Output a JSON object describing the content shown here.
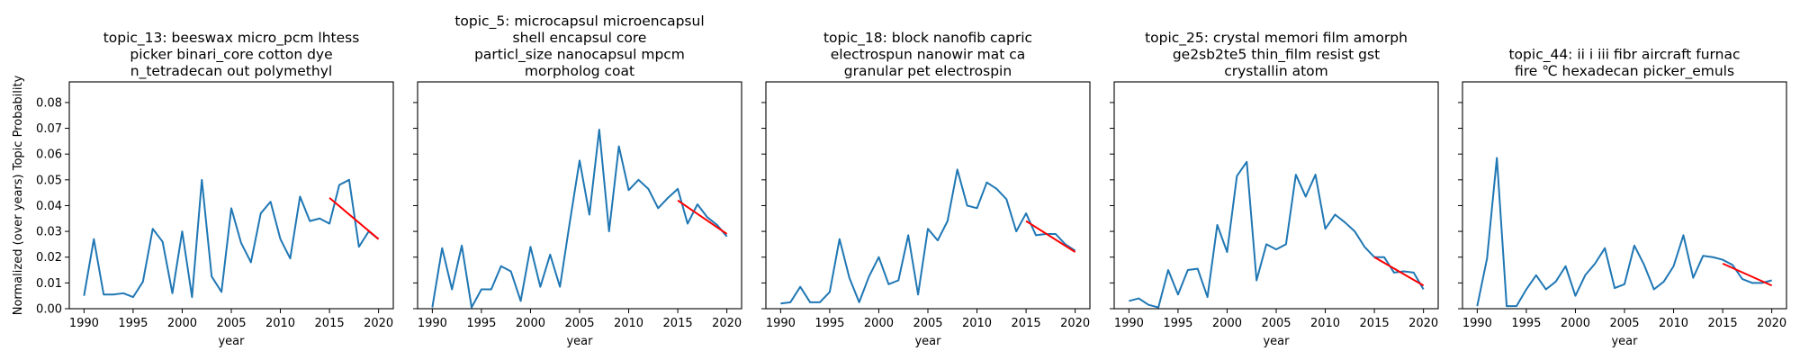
{
  "chart_data": [
    {
      "type": "line",
      "title_lines": [
        "topic_13: beeswax micro_pcm lhtess",
        "picker binari_core cotton dye",
        "n_tetradecan out polymethyl"
      ],
      "xlabel": "year",
      "ylabel": "Normalized (over years) Topic Probability",
      "xlim": [
        1988.5,
        2021.5
      ],
      "ylim": [
        0.0,
        0.088
      ],
      "xticks": [
        1990,
        1995,
        2000,
        2005,
        2010,
        2015,
        2020
      ],
      "yticks": [
        0.0,
        0.01,
        0.02,
        0.03,
        0.04,
        0.05,
        0.06,
        0.07,
        0.08
      ],
      "x": [
        1990,
        1991,
        1992,
        1993,
        1994,
        1995,
        1996,
        1997,
        1998,
        1999,
        2000,
        2001,
        2002,
        2003,
        2004,
        2005,
        2006,
        2007,
        2008,
        2009,
        2010,
        2011,
        2012,
        2013,
        2014,
        2015,
        2016,
        2017,
        2018,
        2019,
        2020
      ],
      "values": [
        0.005,
        0.027,
        0.0055,
        0.0055,
        0.006,
        0.0045,
        0.0105,
        0.031,
        0.026,
        0.006,
        0.03,
        0.0045,
        0.05,
        0.0125,
        0.0065,
        0.039,
        0.0255,
        0.018,
        0.037,
        0.0415,
        0.027,
        0.0195,
        0.0435,
        0.034,
        0.035,
        0.033,
        0.048,
        0.05,
        0.024,
        0.03,
        0.027
      ],
      "trend": {
        "x": [
          2015,
          2020
        ],
        "y": [
          0.043,
          0.027
        ],
        "color": "#ff0000"
      },
      "line_color": "#1f77b4"
    },
    {
      "type": "line",
      "title_lines": [
        "topic_5: microcapsul microencapsul",
        "shell encapsul core",
        "particl_size nanocapsul mpcm",
        "morpholog coat"
      ],
      "xlabel": "year",
      "ylabel": "",
      "xlim": [
        1988.5,
        2021.5
      ],
      "ylim": [
        0.0,
        0.088
      ],
      "xticks": [
        1990,
        1995,
        2000,
        2005,
        2010,
        2015,
        2020
      ],
      "yticks": [
        0.0,
        0.01,
        0.02,
        0.03,
        0.04,
        0.05,
        0.06,
        0.07,
        0.08
      ],
      "x": [
        1990,
        1991,
        1992,
        1993,
        1994,
        1995,
        1996,
        1997,
        1998,
        1999,
        2000,
        2001,
        2002,
        2003,
        2004,
        2005,
        2006,
        2007,
        2008,
        2009,
        2010,
        2011,
        2012,
        2013,
        2014,
        2015,
        2016,
        2017,
        2018,
        2019,
        2020
      ],
      "values": [
        0.0005,
        0.0235,
        0.0075,
        0.0245,
        0.0005,
        0.0075,
        0.0075,
        0.0165,
        0.0145,
        0.003,
        0.024,
        0.0085,
        0.021,
        0.0085,
        0.0335,
        0.0575,
        0.0365,
        0.0695,
        0.03,
        0.063,
        0.046,
        0.05,
        0.0465,
        0.039,
        0.043,
        0.0465,
        0.033,
        0.0405,
        0.0355,
        0.0325,
        0.028
      ],
      "trend": {
        "x": [
          2015,
          2020
        ],
        "y": [
          0.042,
          0.029
        ],
        "color": "#ff0000"
      },
      "line_color": "#1f77b4"
    },
    {
      "type": "line",
      "title_lines": [
        "topic_18: block nanofib capric",
        "electrospun nanowir mat ca",
        "granular pet electrospin"
      ],
      "xlabel": "year",
      "ylabel": "",
      "xlim": [
        1988.5,
        2021.5
      ],
      "ylim": [
        0.0,
        0.088
      ],
      "xticks": [
        1990,
        1995,
        2000,
        2005,
        2010,
        2015,
        2020
      ],
      "yticks": [
        0.0,
        0.01,
        0.02,
        0.03,
        0.04,
        0.05,
        0.06,
        0.07,
        0.08
      ],
      "x": [
        1990,
        1991,
        1992,
        1993,
        1994,
        1995,
        1996,
        1997,
        1998,
        1999,
        2000,
        2001,
        2002,
        2003,
        2004,
        2005,
        2006,
        2007,
        2008,
        2009,
        2010,
        2011,
        2012,
        2013,
        2014,
        2015,
        2016,
        2017,
        2018,
        2019,
        2020
      ],
      "values": [
        0.002,
        0.0025,
        0.0085,
        0.0025,
        0.0025,
        0.0065,
        0.027,
        0.012,
        0.0025,
        0.0125,
        0.02,
        0.0095,
        0.011,
        0.0285,
        0.0055,
        0.031,
        0.0265,
        0.034,
        0.054,
        0.04,
        0.039,
        0.049,
        0.0465,
        0.0425,
        0.03,
        0.037,
        0.0285,
        0.029,
        0.029,
        0.025,
        0.0225
      ],
      "trend": {
        "x": [
          2015,
          2020
        ],
        "y": [
          0.034,
          0.022
        ],
        "color": "#ff0000"
      },
      "line_color": "#1f77b4"
    },
    {
      "type": "line",
      "title_lines": [
        "topic_25: crystal memori film amorph",
        "ge2sb2te5 thin_film resist gst",
        "crystallin atom"
      ],
      "xlabel": "year",
      "ylabel": "",
      "xlim": [
        1988.5,
        2021.5
      ],
      "ylim": [
        0.0,
        0.088
      ],
      "xticks": [
        1990,
        1995,
        2000,
        2005,
        2010,
        2015,
        2020
      ],
      "yticks": [
        0.0,
        0.01,
        0.02,
        0.03,
        0.04,
        0.05,
        0.06,
        0.07,
        0.08
      ],
      "x": [
        1990,
        1991,
        1992,
        1993,
        1994,
        1995,
        1996,
        1997,
        1998,
        1999,
        2000,
        2001,
        2002,
        2003,
        2004,
        2005,
        2006,
        2007,
        2008,
        2009,
        2010,
        2011,
        2012,
        2013,
        2014,
        2015,
        2016,
        2017,
        2018,
        2019,
        2020
      ],
      "values": [
        0.003,
        0.004,
        0.0015,
        0.0005,
        0.015,
        0.0055,
        0.015,
        0.0155,
        0.0045,
        0.0325,
        0.022,
        0.0515,
        0.057,
        0.011,
        0.025,
        0.023,
        0.025,
        0.052,
        0.0435,
        0.052,
        0.031,
        0.0365,
        0.0335,
        0.03,
        0.024,
        0.02,
        0.02,
        0.014,
        0.0145,
        0.014,
        0.0075
      ],
      "trend": {
        "x": [
          2015,
          2020
        ],
        "y": [
          0.02,
          0.009
        ],
        "color": "#ff0000"
      },
      "line_color": "#1f77b4"
    },
    {
      "type": "line",
      "title_lines": [
        "topic_44: ii i iii fibr aircraft furnac",
        "fire ℃ hexadecan picker_emuls"
      ],
      "xlabel": "year",
      "ylabel": "",
      "xlim": [
        1988.5,
        2021.5
      ],
      "ylim": [
        0.0,
        0.088
      ],
      "xticks": [
        1990,
        1995,
        2000,
        2005,
        2010,
        2015,
        2020
      ],
      "yticks": [
        0.0,
        0.01,
        0.02,
        0.03,
        0.04,
        0.05,
        0.06,
        0.07,
        0.08
      ],
      "x": [
        1990,
        1991,
        1992,
        1993,
        1994,
        1995,
        1996,
        1997,
        1998,
        1999,
        2000,
        2001,
        2002,
        2003,
        2004,
        2005,
        2006,
        2007,
        2008,
        2009,
        2010,
        2011,
        2012,
        2013,
        2014,
        2015,
        2016,
        2017,
        2018,
        2019,
        2020
      ],
      "values": [
        0.001,
        0.0195,
        0.0585,
        0.001,
        0.001,
        0.0075,
        0.013,
        0.0075,
        0.0105,
        0.0165,
        0.005,
        0.013,
        0.0175,
        0.0235,
        0.008,
        0.0095,
        0.0245,
        0.017,
        0.0075,
        0.0105,
        0.0165,
        0.0285,
        0.012,
        0.0205,
        0.02,
        0.019,
        0.017,
        0.0115,
        0.01,
        0.01,
        0.011
      ],
      "trend": {
        "x": [
          2015,
          2020
        ],
        "y": [
          0.0175,
          0.009
        ],
        "color": "#ff0000"
      },
      "line_color": "#1f77b4"
    }
  ]
}
